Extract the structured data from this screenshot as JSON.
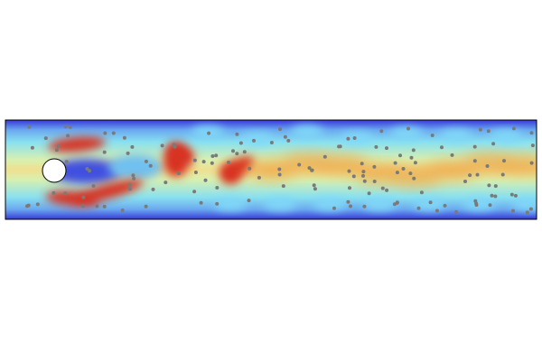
{
  "colors": {
    "wall": "#3a3ad8",
    "low": "#7fd8f8",
    "mid": "#f0e890",
    "high": "#d83020",
    "particle": "#7a7a7a",
    "obstacle": "#ffffff",
    "frame": "#000000"
  },
  "visual": {
    "type": "flow-field-with-particles",
    "obstacle": "circle",
    "colormap": "jet"
  }
}
